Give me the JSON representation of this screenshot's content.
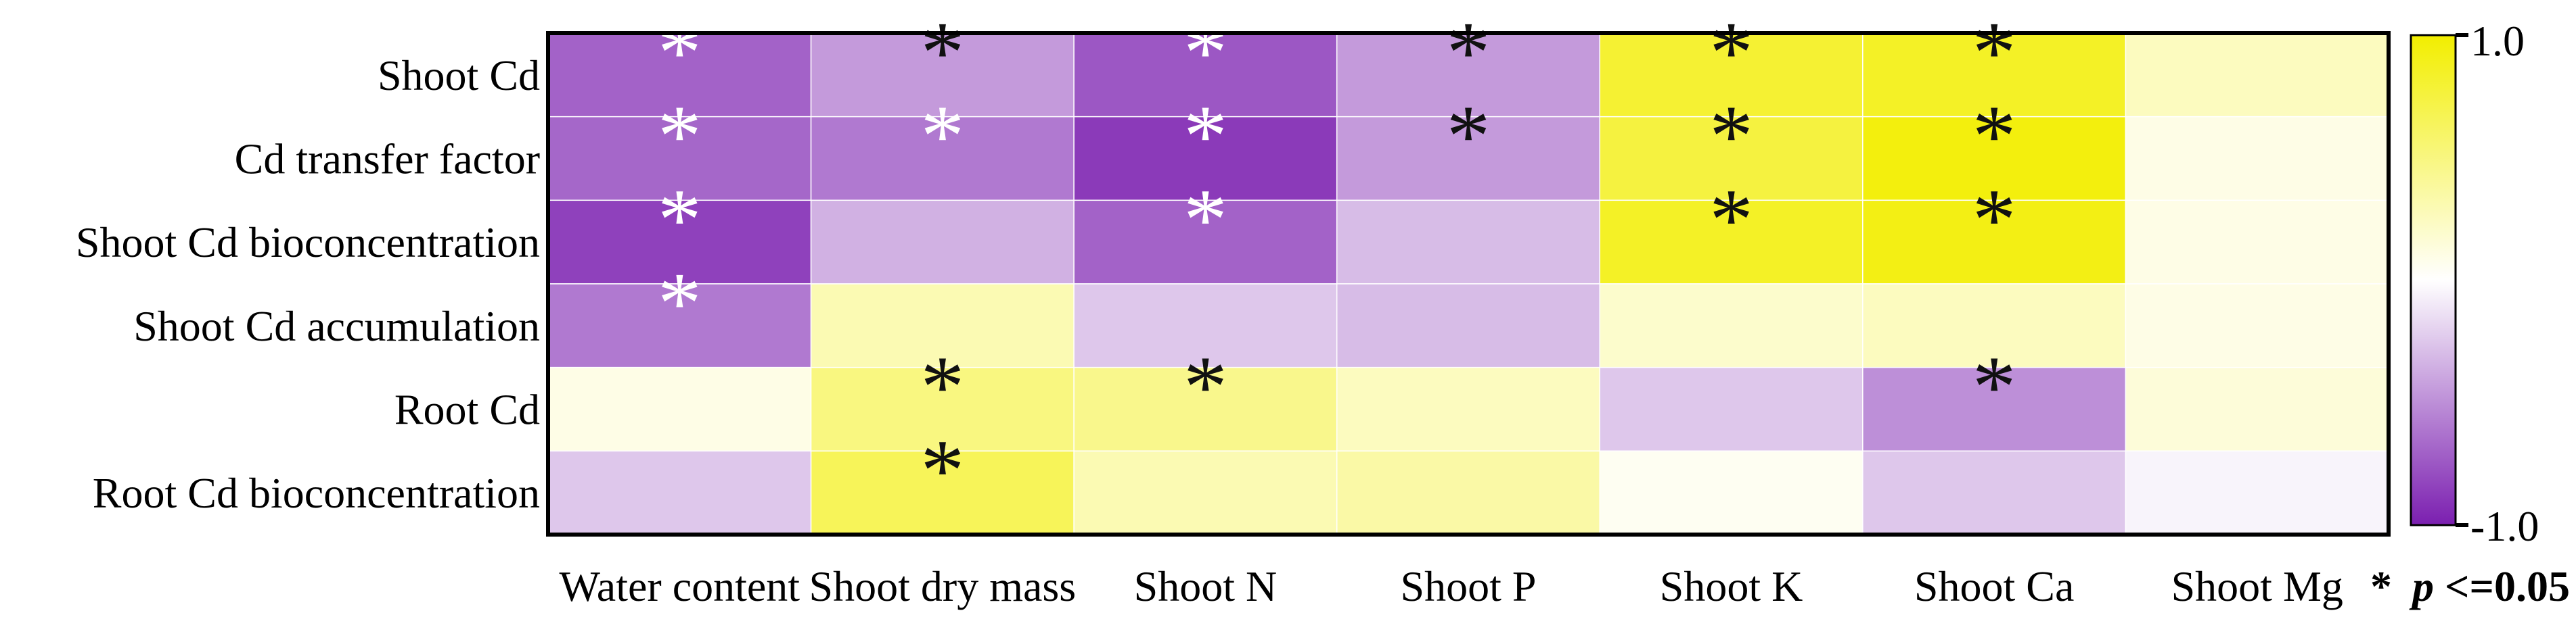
{
  "chart_data": {
    "type": "heatmap",
    "title": "",
    "xlabel": "",
    "ylabel": "",
    "rows": [
      "Shoot Cd",
      "Cd transfer factor",
      "Shoot Cd bioconcentration",
      "Shoot Cd accumulation",
      "Root Cd",
      "Root Cd bioconcentration"
    ],
    "columns": [
      "Water content",
      "Shoot dry mass",
      "Shoot N",
      "Shoot P",
      "Shoot K",
      "Shoot Ca",
      "Shoot Mg"
    ],
    "values": [
      [
        -0.7,
        -0.45,
        -0.75,
        -0.45,
        0.8,
        0.85,
        0.25
      ],
      [
        -0.68,
        -0.6,
        -0.88,
        -0.45,
        0.75,
        0.95,
        0.1
      ],
      [
        -0.85,
        -0.35,
        -0.7,
        -0.3,
        0.85,
        0.92,
        0.1
      ],
      [
        -0.6,
        0.3,
        -0.25,
        -0.3,
        0.2,
        0.25,
        0.1
      ],
      [
        0.1,
        0.5,
        0.45,
        0.25,
        -0.25,
        -0.5,
        0.15
      ],
      [
        -0.25,
        0.65,
        0.3,
        0.35,
        0.05,
        -0.25,
        -0.05
      ]
    ],
    "significant": [
      [
        true,
        true,
        true,
        true,
        true,
        true,
        false
      ],
      [
        true,
        true,
        true,
        true,
        true,
        true,
        false
      ],
      [
        true,
        false,
        true,
        false,
        true,
        true,
        false
      ],
      [
        true,
        false,
        false,
        false,
        false,
        false,
        false
      ],
      [
        false,
        true,
        true,
        false,
        false,
        true,
        false
      ],
      [
        false,
        true,
        false,
        false,
        false,
        false,
        false
      ]
    ],
    "asterisk_symbol": "*",
    "colorbar": {
      "min": -1.0,
      "max": 1.0,
      "max_label": "1.0",
      "min_label": "-1.0"
    },
    "significance_note": {
      "symbol": "*",
      "var": "p",
      "rest": "<=0.05"
    },
    "colors": {
      "negative": "#7B1FB0",
      "neutral": "#FFFFFF",
      "positive": "#F2EE00",
      "light_star": "#FFFFFF",
      "dark_star": "#111111",
      "frame": "#000000"
    }
  }
}
